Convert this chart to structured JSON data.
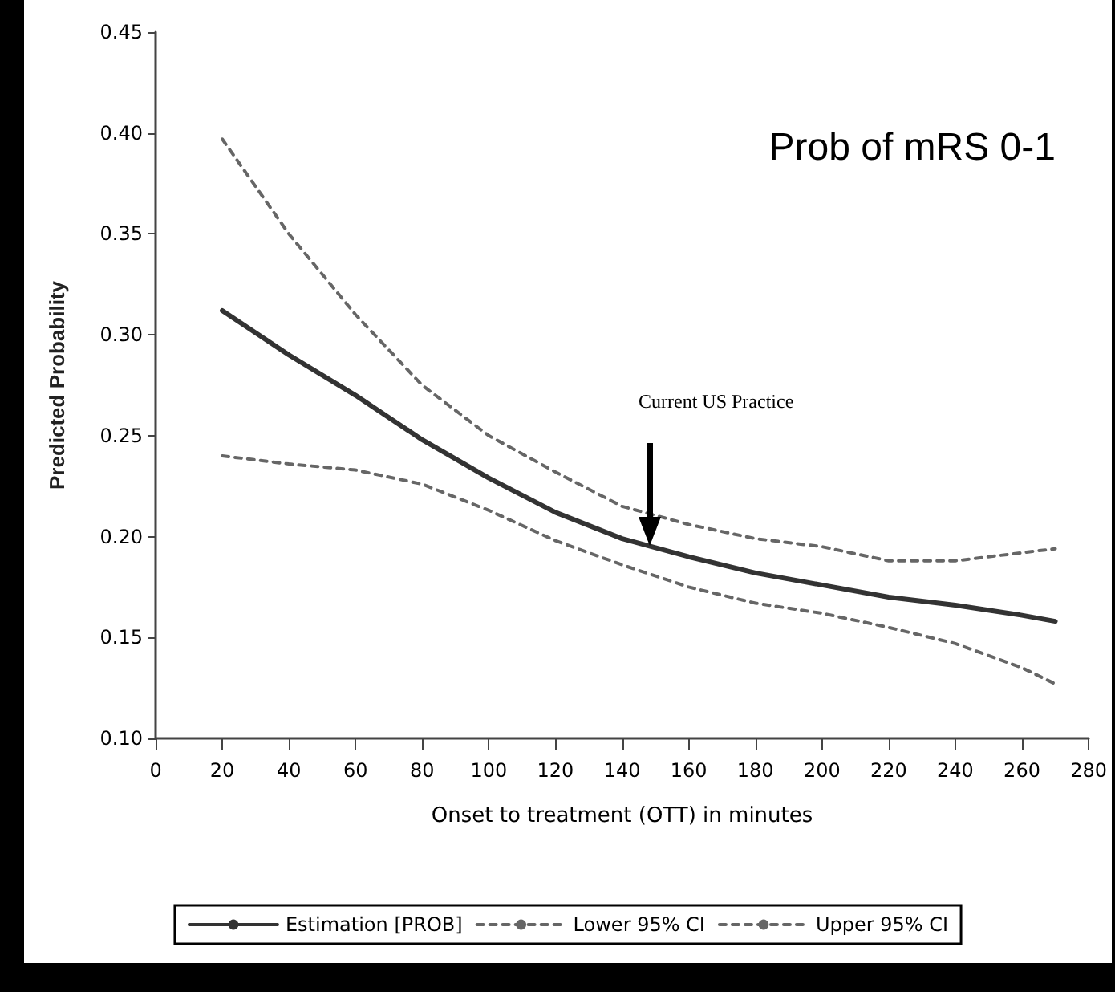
{
  "chart_data": {
    "type": "line",
    "title": "Prob of mRS 0-1",
    "xlabel": "Onset to treatment (OTT) in minutes",
    "ylabel": "Predicted Probability",
    "x": [
      20,
      40,
      60,
      80,
      100,
      120,
      140,
      160,
      180,
      200,
      220,
      240,
      260,
      270
    ],
    "series": [
      {
        "name": "Estimation [PROB]",
        "color": "#333333",
        "line_style": "solid",
        "values": [
          0.312,
          0.29,
          0.27,
          0.248,
          0.229,
          0.212,
          0.199,
          0.19,
          0.182,
          0.176,
          0.17,
          0.166,
          0.161,
          0.158
        ]
      },
      {
        "name": "Lower 95% CI",
        "color": "#666666",
        "line_style": "dashed",
        "values": [
          0.24,
          0.236,
          0.233,
          0.226,
          0.213,
          0.198,
          0.186,
          0.175,
          0.167,
          0.162,
          0.155,
          0.147,
          0.135,
          0.127
        ]
      },
      {
        "name": "Upper 95% CI",
        "color": "#666666",
        "line_style": "dashed",
        "values": [
          0.397,
          0.35,
          0.31,
          0.275,
          0.25,
          0.232,
          0.215,
          0.206,
          0.199,
          0.195,
          0.188,
          0.188,
          0.192,
          0.194
        ]
      }
    ],
    "annotations": [
      "Current US Practice"
    ],
    "xlim": [
      0,
      280
    ],
    "xticks": [
      0,
      20,
      40,
      60,
      80,
      100,
      120,
      140,
      160,
      180,
      200,
      220,
      240,
      260,
      280
    ],
    "ylim": [
      0.1,
      0.45
    ],
    "yticks": [
      {
        "value": 0.1,
        "label": "0.10"
      },
      0.15,
      {
        "value": 0.2,
        "label": "0.20"
      },
      0.25,
      {
        "value": 0.3,
        "label": "0.30"
      },
      0.35,
      {
        "value": 0.4,
        "label": "0.40"
      },
      0.45
    ],
    "grid": false,
    "legend": "bottom",
    "marker": "none"
  }
}
